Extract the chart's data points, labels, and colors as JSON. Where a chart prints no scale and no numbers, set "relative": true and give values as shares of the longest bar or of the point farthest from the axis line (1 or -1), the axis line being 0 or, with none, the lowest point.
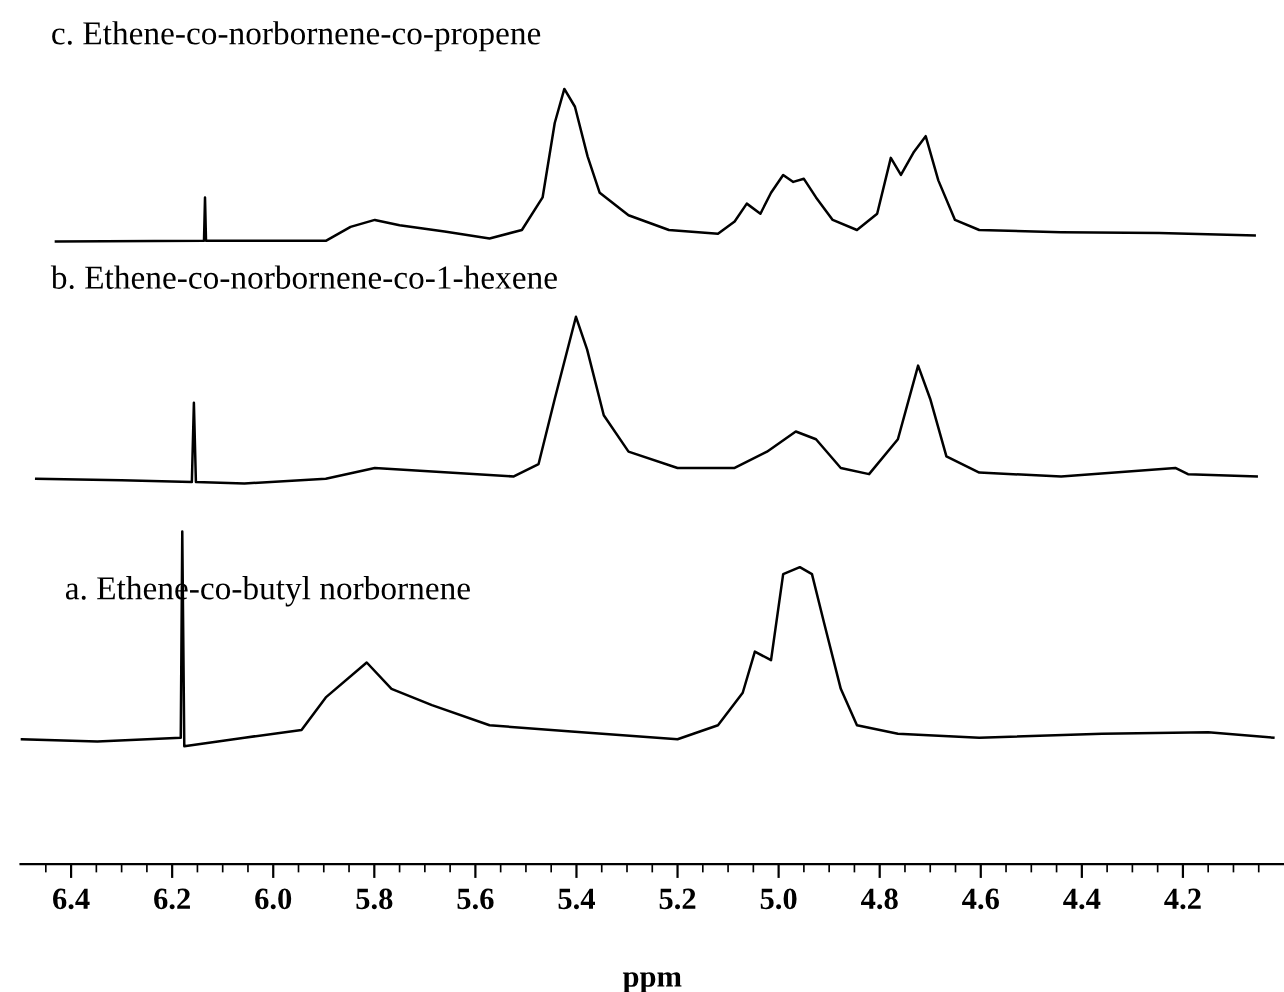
{
  "chart_data": {
    "type": "line",
    "relative": true,
    "tick_labels": "x",
    "xlim": [
      6.5,
      4.0
    ],
    "xlabel": "ppm",
    "xticks": [
      6.4,
      6.2,
      {
        "value": 6.0,
        "label": "6.0"
      },
      5.8,
      5.6,
      5.4,
      5.2,
      {
        "value": 5.0,
        "label": "5.0"
      },
      4.8,
      4.6,
      4.4,
      4.2,
      {
        "value": 6.45,
        "label": null
      },
      {
        "value": 6.35,
        "label": null
      },
      {
        "value": 6.3,
        "label": null
      },
      {
        "value": 6.25,
        "label": null
      },
      {
        "value": 6.15,
        "label": null
      },
      {
        "value": 6.1,
        "label": null
      },
      {
        "value": 6.05,
        "label": null
      },
      {
        "value": 5.95,
        "label": null
      },
      {
        "value": 5.9,
        "label": null
      },
      {
        "value": 5.85,
        "label": null
      },
      {
        "value": 5.75,
        "label": null
      },
      {
        "value": 5.7,
        "label": null
      },
      {
        "value": 5.65,
        "label": null
      },
      {
        "value": 5.55,
        "label": null
      },
      {
        "value": 5.5,
        "label": null
      },
      {
        "value": 5.45,
        "label": null
      },
      {
        "value": 5.35,
        "label": null
      },
      {
        "value": 5.3,
        "label": null
      },
      {
        "value": 5.25,
        "label": null
      },
      {
        "value": 5.15,
        "label": null
      },
      {
        "value": 5.1,
        "label": null
      },
      {
        "value": 5.05,
        "label": null
      },
      {
        "value": 4.95,
        "label": null
      },
      {
        "value": 4.9,
        "label": null
      },
      {
        "value": 4.85,
        "label": null
      },
      {
        "value": 4.75,
        "label": null
      },
      {
        "value": 4.7,
        "label": null
      },
      {
        "value": 4.65,
        "label": null
      },
      {
        "value": 4.55,
        "label": null
      },
      {
        "value": 4.5,
        "label": null
      },
      {
        "value": 4.45,
        "label": null
      },
      {
        "value": 4.35,
        "label": null
      },
      {
        "value": 4.3,
        "label": null
      },
      {
        "value": 4.25,
        "label": null
      },
      {
        "value": 4.15,
        "label": null
      },
      {
        "value": 4.1,
        "label": null
      },
      {
        "value": 4.05,
        "label": null
      }
    ],
    "series": [
      {
        "name": "c. Ethene-co-norbornene-co-propene",
        "color": "#000000",
        "x": [
          6.43,
          6.137,
          6.135,
          6.133,
          5.896,
          5.847,
          5.799,
          5.75,
          5.661,
          5.572,
          5.508,
          5.467,
          5.443,
          5.424,
          5.403,
          5.378,
          5.354,
          5.297,
          5.217,
          5.12,
          5.087,
          5.063,
          5.036,
          5.015,
          4.991,
          4.971,
          4.95,
          4.926,
          4.893,
          4.845,
          4.805,
          4.778,
          4.758,
          4.732,
          4.709,
          4.684,
          4.651,
          4.603,
          4.441,
          4.247,
          4.058
        ],
        "values": [
          0.803,
          0.804,
          0.86,
          0.804,
          0.804,
          0.822,
          0.831,
          0.824,
          0.816,
          0.807,
          0.818,
          0.86,
          0.956,
          1.0,
          0.977,
          0.913,
          0.866,
          0.837,
          0.818,
          0.813,
          0.829,
          0.852,
          0.839,
          0.866,
          0.889,
          0.88,
          0.884,
          0.86,
          0.831,
          0.818,
          0.839,
          0.911,
          0.889,
          0.919,
          0.939,
          0.882,
          0.831,
          0.818,
          0.815,
          0.814,
          0.811
        ]
      },
      {
        "name": "b. Ethene-co-norbornene-co-1-hexene",
        "color": "#000000",
        "x": [
          6.469,
          6.3,
          6.161,
          6.157,
          6.153,
          6.057,
          5.896,
          5.799,
          5.653,
          5.524,
          5.475,
          5.443,
          5.401,
          5.379,
          5.346,
          5.297,
          5.2,
          5.087,
          5.023,
          4.966,
          4.926,
          4.877,
          4.821,
          4.764,
          4.724,
          4.7,
          4.668,
          4.603,
          4.441,
          4.215,
          4.19,
          4.054
        ],
        "values": [
          0.497,
          0.495,
          0.493,
          0.595,
          0.493,
          0.491,
          0.497,
          0.511,
          0.505,
          0.5,
          0.516,
          0.6,
          0.706,
          0.664,
          0.579,
          0.532,
          0.511,
          0.511,
          0.532,
          0.558,
          0.548,
          0.511,
          0.503,
          0.548,
          0.643,
          0.6,
          0.526,
          0.505,
          0.5,
          0.511,
          0.503,
          0.5
        ]
      },
      {
        "name": "a. Ethene-co-butyl norbornene",
        "color": "#000000",
        "x": [
          6.498,
          6.348,
          6.183,
          6.18,
          6.176,
          6.057,
          5.944,
          5.896,
          5.815,
          5.766,
          5.686,
          5.572,
          5.41,
          5.2,
          5.12,
          5.071,
          5.047,
          5.015,
          4.991,
          4.958,
          4.934,
          4.91,
          4.877,
          4.845,
          4.764,
          4.603,
          4.36,
          4.15,
          4.021
        ],
        "values": [
          0.161,
          0.158,
          0.163,
          0.429,
          0.152,
          0.163,
          0.173,
          0.215,
          0.26,
          0.226,
          0.205,
          0.179,
          0.171,
          0.161,
          0.179,
          0.221,
          0.274,
          0.263,
          0.374,
          0.383,
          0.374,
          0.311,
          0.226,
          0.179,
          0.168,
          0.163,
          0.168,
          0.17,
          0.163
        ]
      }
    ]
  }
}
